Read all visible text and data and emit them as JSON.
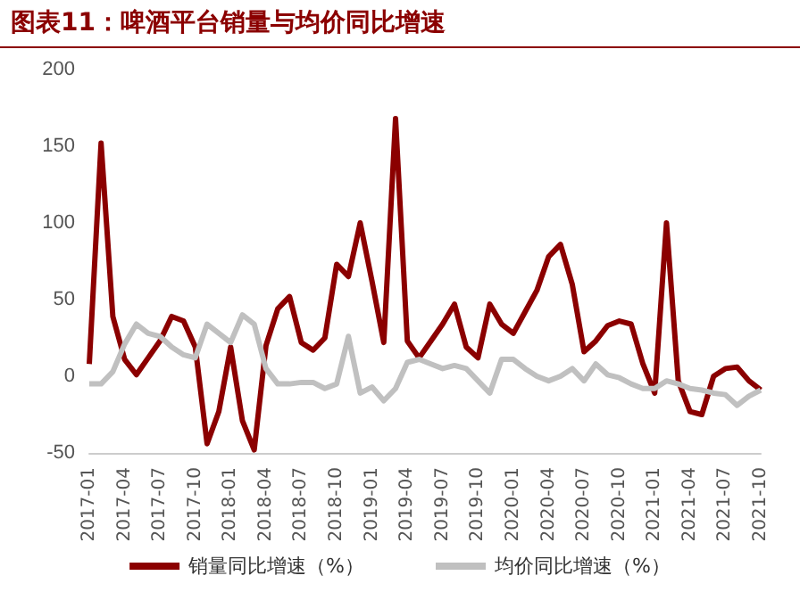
{
  "chart_data": {
    "type": "line",
    "title": "图表11：啤酒平台销量与均价同比增速",
    "categories": [
      "2017-01",
      null,
      null,
      "2017-04",
      null,
      null,
      "2017-07",
      null,
      null,
      "2017-10",
      null,
      null,
      "2018-01",
      null,
      null,
      "2018-04",
      null,
      null,
      "2018-07",
      null,
      null,
      "2018-10",
      null,
      null,
      "2019-01",
      null,
      null,
      "2019-04",
      null,
      null,
      "2019-07",
      null,
      null,
      "2019-10",
      null,
      null,
      "2020-01",
      null,
      null,
      "2020-04",
      null,
      null,
      "2020-07",
      null,
      null,
      "2020-10",
      null,
      null,
      "2021-01",
      null,
      null,
      "2021-04",
      null,
      null,
      "2021-07",
      null,
      null,
      "2021-10"
    ],
    "series": [
      {
        "name": "销量同比增速（%）",
        "color": "#8b0000",
        "values": [
          8,
          152,
          39,
          11,
          1,
          12,
          23,
          39,
          36,
          19,
          -44,
          -23,
          19,
          -29,
          -48,
          20,
          44,
          52,
          22,
          17,
          25,
          73,
          65,
          100,
          62,
          22,
          168,
          23,
          12,
          23,
          34,
          47,
          19,
          12,
          47,
          34,
          28,
          42,
          56,
          78,
          86,
          60,
          16,
          23,
          33,
          36,
          34,
          8,
          -11,
          100,
          -3,
          -23,
          -25,
          0,
          5,
          6,
          -3,
          -9
        ]
      },
      {
        "name": "均价同比增速（%）",
        "color": "#c0c0c0",
        "values": [
          -5,
          -5,
          3,
          21,
          34,
          28,
          26,
          19,
          14,
          12,
          34,
          28,
          22,
          40,
          34,
          5,
          -5,
          -5,
          -4,
          -4,
          -8,
          -5,
          26,
          -11,
          -7,
          -16,
          -8,
          9,
          11,
          8,
          5,
          7,
          5,
          -3,
          -11,
          11,
          11,
          5,
          0,
          -3,
          0,
          5,
          -3,
          8,
          1,
          -1,
          -5,
          -8,
          -8,
          -3,
          -5,
          -8,
          -9,
          -11,
          -12,
          -19,
          -13,
          -9
        ]
      }
    ],
    "ylim": [
      -50,
      200
    ],
    "yticks": [
      -50,
      0,
      50,
      100,
      150,
      200
    ],
    "legend": "bottom",
    "grid": false,
    "marker": "none",
    "line_style": "solid"
  }
}
